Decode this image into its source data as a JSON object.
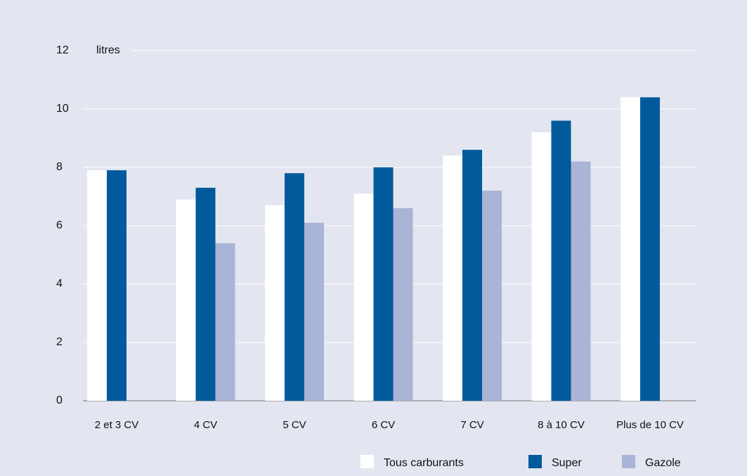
{
  "chart_data": {
    "type": "bar",
    "y_label": "litres",
    "categories": [
      "2 et 3 CV",
      "4 CV",
      "5 CV",
      "6 CV",
      "7 CV",
      "8 à 10 CV",
      "Plus de 10 CV"
    ],
    "series": [
      {
        "name": "Tous carburants",
        "color": "#ffffff",
        "values": [
          7.9,
          6.9,
          6.7,
          7.1,
          8.4,
          9.2,
          10.4
        ]
      },
      {
        "name": "Super",
        "color": "#005a9c",
        "values": [
          7.9,
          7.3,
          7.8,
          8.0,
          8.6,
          9.6,
          10.4
        ]
      },
      {
        "name": "Gazole",
        "color": "#aab4d6",
        "values": [
          null,
          5.4,
          6.1,
          6.6,
          7.2,
          8.2,
          null
        ]
      }
    ],
    "ylim": [
      0,
      12
    ],
    "yticks": [
      0,
      2,
      4,
      6,
      8,
      10,
      12
    ],
    "grid": true
  }
}
